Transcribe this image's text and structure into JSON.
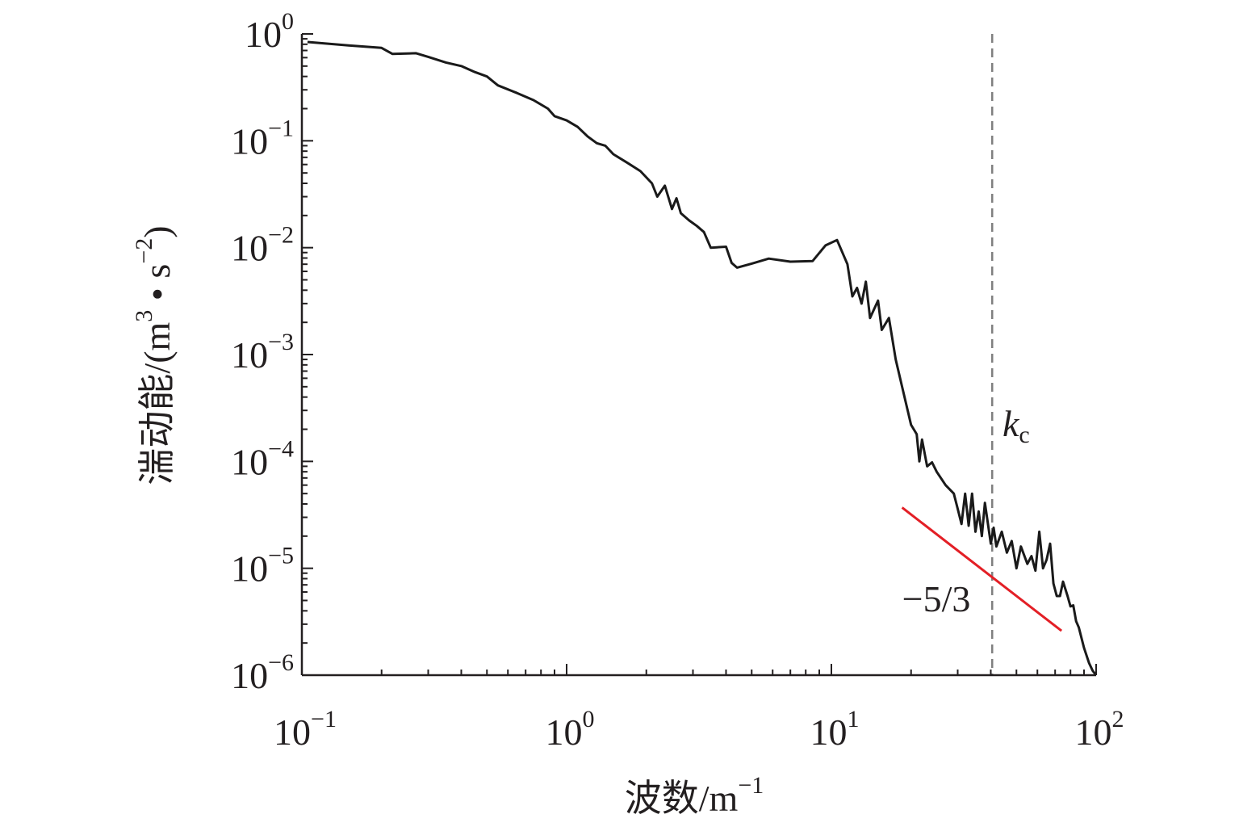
{
  "chart_data": {
    "type": "line",
    "title": "",
    "xlabel": "波数/m",
    "xlabel_exponent": "−1",
    "ylabel": "湍动能/(m",
    "ylabel_exp1": "3",
    "ylabel_mid": " • s",
    "ylabel_exp2": "−2",
    "ylabel_close": ")",
    "x_scale": "log",
    "y_scale": "log",
    "xlim": [
      0.1,
      100
    ],
    "ylim": [
      1e-06,
      1
    ],
    "grid": false,
    "x_ticks": [
      {
        "value": 0.1,
        "base": "10",
        "exp": "−1"
      },
      {
        "value": 1,
        "base": "10",
        "exp": "0"
      },
      {
        "value": 10,
        "base": "10",
        "exp": "1"
      },
      {
        "value": 100,
        "base": "10",
        "exp": "2"
      }
    ],
    "y_ticks": [
      {
        "value": 1,
        "base": "10",
        "exp": "0"
      },
      {
        "value": 0.1,
        "base": "10",
        "exp": "−1"
      },
      {
        "value": 0.01,
        "base": "10",
        "exp": "−2"
      },
      {
        "value": 0.001,
        "base": "10",
        "exp": "−3"
      },
      {
        "value": 0.0001,
        "base": "10",
        "exp": "−4"
      },
      {
        "value": 1e-05,
        "base": "10",
        "exp": "−5"
      },
      {
        "value": 1e-06,
        "base": "10",
        "exp": "−6"
      }
    ],
    "series": [
      {
        "color": "#1a1a1a",
        "points": [
          [
            0.105,
            0.84
          ],
          [
            0.15,
            0.78
          ],
          [
            0.2,
            0.74
          ],
          [
            0.22,
            0.65
          ],
          [
            0.27,
            0.66
          ],
          [
            0.3,
            0.61
          ],
          [
            0.35,
            0.54
          ],
          [
            0.4,
            0.5
          ],
          [
            0.45,
            0.44
          ],
          [
            0.5,
            0.4
          ],
          [
            0.55,
            0.33
          ],
          [
            0.65,
            0.28
          ],
          [
            0.75,
            0.24
          ],
          [
            0.85,
            0.2
          ],
          [
            0.9,
            0.17
          ],
          [
            1.0,
            0.155
          ],
          [
            1.1,
            0.135
          ],
          [
            1.2,
            0.11
          ],
          [
            1.3,
            0.095
          ],
          [
            1.4,
            0.09
          ],
          [
            1.5,
            0.075
          ],
          [
            1.7,
            0.062
          ],
          [
            1.9,
            0.052
          ],
          [
            2.1,
            0.04
          ],
          [
            2.2,
            0.03
          ],
          [
            2.35,
            0.038
          ],
          [
            2.5,
            0.023
          ],
          [
            2.6,
            0.029
          ],
          [
            2.7,
            0.021
          ],
          [
            2.9,
            0.018
          ],
          [
            3.1,
            0.016
          ],
          [
            3.3,
            0.014
          ],
          [
            3.5,
            0.01
          ],
          [
            4.0,
            0.0102
          ],
          [
            4.2,
            0.0072
          ],
          [
            4.4,
            0.0065
          ],
          [
            5.0,
            0.0071
          ],
          [
            5.8,
            0.0079
          ],
          [
            7.0,
            0.0074
          ],
          [
            8.5,
            0.0075
          ],
          [
            9.5,
            0.0105
          ],
          [
            10.5,
            0.0118
          ],
          [
            11.5,
            0.007
          ],
          [
            12.0,
            0.0035
          ],
          [
            12.5,
            0.0042
          ],
          [
            13.0,
            0.003
          ],
          [
            13.5,
            0.0048
          ],
          [
            14.0,
            0.0022
          ],
          [
            15.0,
            0.0032
          ],
          [
            15.5,
            0.0017
          ],
          [
            16.5,
            0.0022
          ],
          [
            17.5,
            0.0009
          ],
          [
            18.5,
            0.0005
          ],
          [
            20.0,
            0.00022
          ],
          [
            21.0,
            0.00018
          ],
          [
            21.5,
            0.0001
          ],
          [
            22.0,
            0.00016
          ],
          [
            23.0,
            9e-05
          ],
          [
            24.0,
            9.8e-05
          ],
          [
            25.0,
            8e-05
          ],
          [
            27.0,
            6e-05
          ],
          [
            29.0,
            5e-05
          ],
          [
            30.0,
            3.6e-05
          ],
          [
            31.0,
            2.6e-05
          ],
          [
            32.0,
            5e-05
          ],
          [
            33.0,
            2.5e-05
          ],
          [
            34.0,
            5e-05
          ],
          [
            35.0,
            2.2e-05
          ],
          [
            36.0,
            3.4e-05
          ],
          [
            37.0,
            2e-05
          ],
          [
            38.0,
            4.1e-05
          ],
          [
            40.0,
            1.7e-05
          ],
          [
            41.0,
            2.4e-05
          ],
          [
            42.0,
            1.6e-05
          ],
          [
            44.0,
            2.2e-05
          ],
          [
            46.0,
            1.4e-05
          ],
          [
            48.0,
            1.8e-05
          ],
          [
            50.0,
            1e-05
          ],
          [
            52.0,
            1.6e-05
          ],
          [
            55.0,
            1.1e-05
          ],
          [
            57.0,
            1.3e-05
          ],
          [
            59.0,
            9.5e-06
          ],
          [
            61.0,
            2.2e-05
          ],
          [
            63.0,
            1e-05
          ],
          [
            65.0,
            1.2e-05
          ],
          [
            67.0,
            1.7e-05
          ],
          [
            69.0,
            7.2e-06
          ],
          [
            71.0,
            5.5e-06
          ],
          [
            73.0,
            5.5e-06
          ],
          [
            75.0,
            7.5e-06
          ],
          [
            78.0,
            5.5e-06
          ],
          [
            80.0,
            4.4e-06
          ],
          [
            82.0,
            4.5e-06
          ],
          [
            84.0,
            3.2e-06
          ],
          [
            86.0,
            2.8e-06
          ],
          [
            90.0,
            1.8e-06
          ],
          [
            94.0,
            1.3e-06
          ],
          [
            97.0,
            1.1e-06
          ],
          [
            100.0,
            1e-06
          ]
        ]
      }
    ],
    "reference_line": {
      "label": "−5/3",
      "color": "#e31f26",
      "slope": -1.6667,
      "x": [
        18.5,
        74.0
      ],
      "y": [
        3.7e-05,
        2.6e-06
      ]
    },
    "cutoff": {
      "label_main": "k",
      "label_sub": "c",
      "x": 40.5,
      "color": "#808080"
    }
  }
}
